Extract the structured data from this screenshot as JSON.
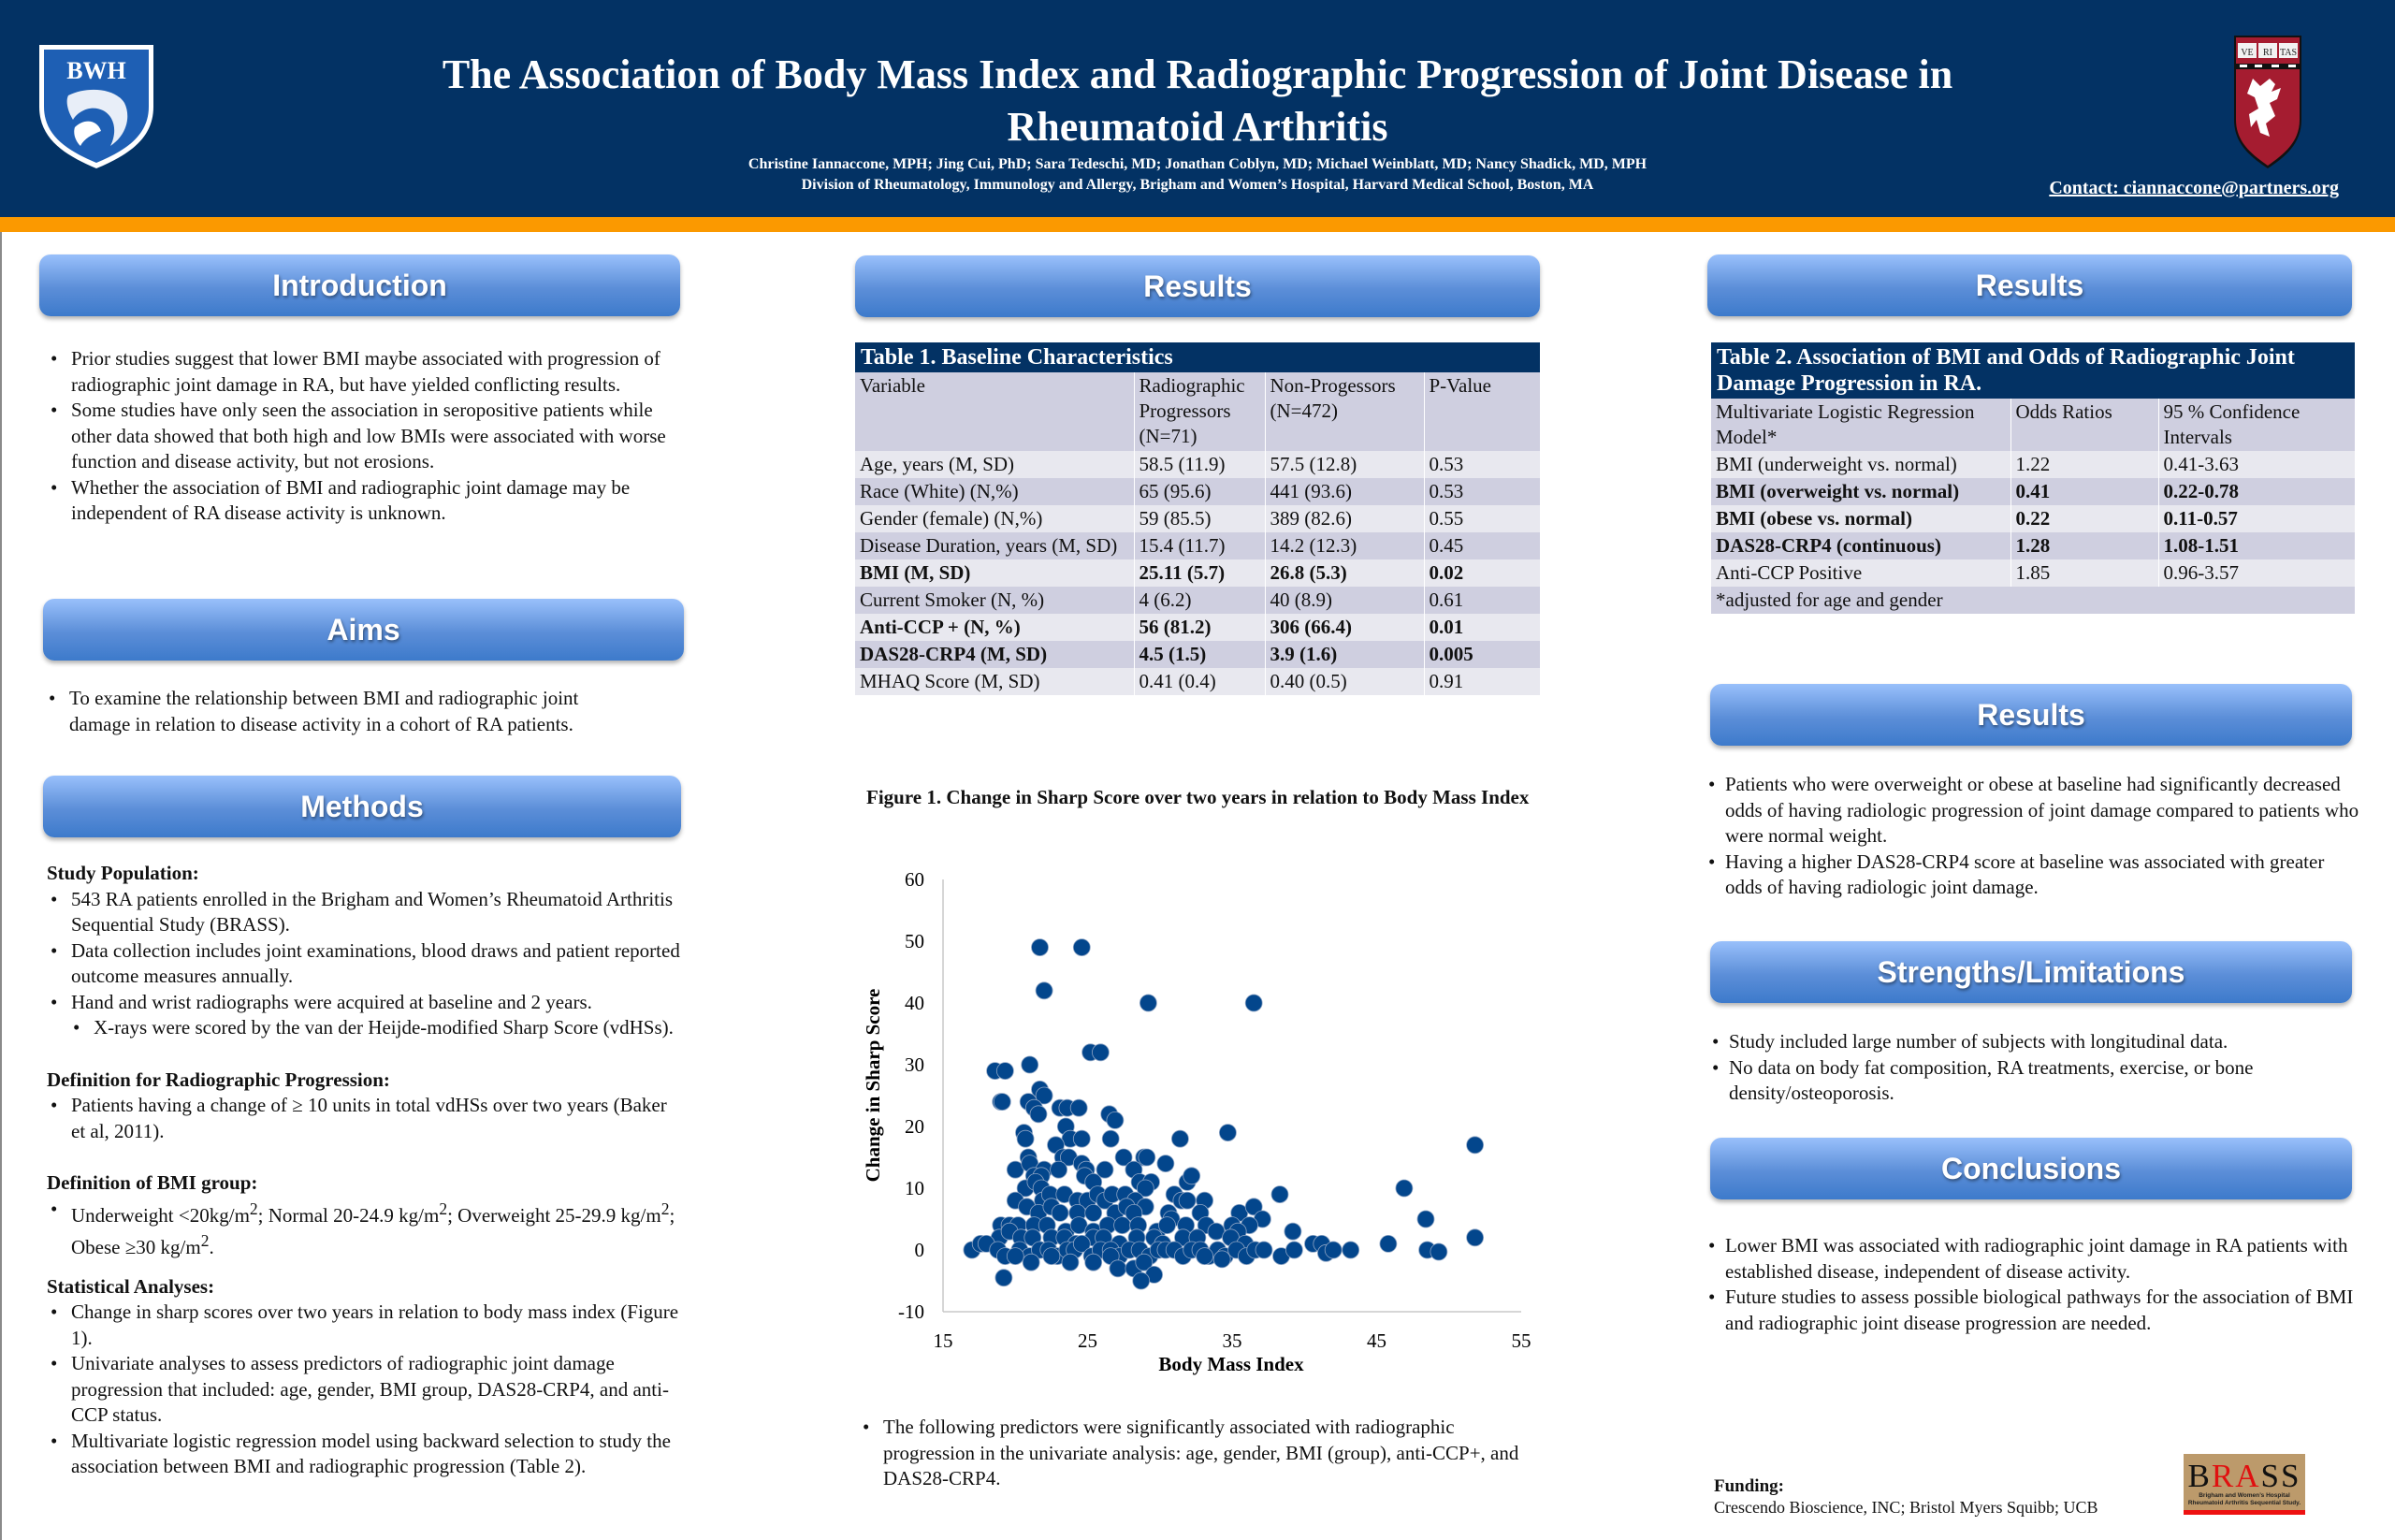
{
  "header": {
    "title": "The Association of Body Mass Index and Radiographic Progression of Joint Disease in Rheumatoid Arthritis",
    "authors": "Christine Iannaccone, MPH; Jing Cui, PhD;  Sara Tedeschi, MD; Jonathan Coblyn, MD; Michael Weinblatt, MD; Nancy Shadick, MD, MPH",
    "affiliation": "Division of Rheumatology, Immunology and Allergy, Brigham and Women’s Hospital, Harvard Medical School, Boston, MA",
    "contact": "Contact: ciannaccone@partners.org",
    "logo_left": "BWH",
    "logo_right": [
      "VE",
      "RI",
      "TAS"
    ],
    "colors": {
      "navy": "#033264",
      "orange": "#fb9900",
      "crimson": "#a51c30"
    }
  },
  "introduction": {
    "heading": "Introduction",
    "bullets": [
      "Prior studies suggest that lower BMI maybe associated with progression of radiographic joint damage in RA, but have yielded conflicting results.",
      "Some studies have only seen the association in seropositive patients while other data showed that both high and low BMIs were associated with worse function and disease activity, but not erosions.",
      "Whether the association of BMI and radiographic joint damage may be independent of RA disease activity is unknown."
    ]
  },
  "aims": {
    "heading": "Aims",
    "bullets": [
      "To examine the relationship between BMI and radiographic joint damage in relation to disease activity in a cohort of RA patients."
    ]
  },
  "methods": {
    "heading": "Methods",
    "study_population": {
      "title": "Study Population:",
      "bullets": [
        "543 RA patients enrolled in the Brigham and Women’s Rheumatoid Arthritis Sequential Study (BRASS).",
        "Data collection includes joint examinations, blood draws and patient reported outcome measures  annually.",
        "Hand and wrist radiographs were acquired at baseline and 2 years."
      ],
      "sub_bullet": "X-rays were scored by the van der Heijde-modified Sharp Score (vdHSs)."
    },
    "progression": {
      "title": "Definition for Radiographic Progression:",
      "bullet": "Patients having a change of ≥ 10 units in total vdHSs over two years (Baker et al, 2011)."
    },
    "bmi_group": {
      "title": "Definition of BMI group:",
      "underweight": "Underweight <20kg/m",
      "normal": "; Normal 20-24.9 kg/m",
      "overweight": "; Overweight 25-29.9 kg/m",
      "obese": "; Obese ≥30 kg/m",
      "sup": "2",
      "end": "."
    },
    "stats": {
      "title": "Statistical Analyses:",
      "bullets": [
        "Change in sharp scores over two years in relation to body mass index (Figure 1).",
        "Univariate analyses to assess predictors of radiographic joint damage progression that included: age, gender, BMI group, DAS28-CRP4, and anti-CCP status.",
        "Multivariate logistic regression model using backward selection to study the association between BMI and radiographic progression (Table 2)."
      ]
    }
  },
  "results_mid": {
    "heading": "Results",
    "table1": {
      "caption": "Table 1. Baseline Characteristics",
      "headers": [
        "Variable",
        "Radiographic Progressors (N=71)",
        "Non-Progessors (N=472)",
        "P-Value"
      ],
      "rows": [
        {
          "cells": [
            "Age, years (M, SD)",
            "58.5 (11.9)",
            "57.5 (12.8)",
            "0.53"
          ],
          "bold": false
        },
        {
          "cells": [
            "Race (White) (N,%)",
            "65 (95.6)",
            "441 (93.6)",
            "0.53"
          ],
          "bold": false
        },
        {
          "cells": [
            "Gender (female) (N,%)",
            "59 (85.5)",
            "389 (82.6)",
            "0.55"
          ],
          "bold": false
        },
        {
          "cells": [
            "Disease  Duration, years (M, SD)",
            "15.4 (11.7)",
            "14.2 (12.3)",
            "0.45"
          ],
          "bold": false
        },
        {
          "cells": [
            "BMI (M, SD)",
            "25.11 (5.7)",
            "26.8 (5.3)",
            "0.02"
          ],
          "bold": true
        },
        {
          "cells": [
            "Current Smoker (N, %)",
            "4 (6.2)",
            "40 (8.9)",
            "0.61"
          ],
          "bold": false
        },
        {
          "cells": [
            "Anti-CCP +  (N, %)",
            "56 (81.2)",
            "306 (66.4)",
            "0.01"
          ],
          "bold": true
        },
        {
          "cells": [
            "DAS28-CRP4 (M, SD)",
            "4.5 (1.5)",
            "3.9 (1.6)",
            "0.005"
          ],
          "bold": true
        },
        {
          "cells": [
            "MHAQ Score (M, SD)",
            "0.41 (0.4)",
            "0.40 (0.5)",
            "0.91"
          ],
          "bold": false
        }
      ]
    },
    "univariate_note": "The following predictors were significantly associated with radiographic progression in the univariate analysis: age, gender, BMI (group), anti-CCP+, and DAS28-CRP4."
  },
  "chart_data": {
    "type": "scatter",
    "title": "Figure 1. Change in Sharp Score over two years in relation to Body Mass Index",
    "xlabel": "Body Mass Index",
    "ylabel": "Change in Sharp Score",
    "xlim": [
      15,
      55
    ],
    "ylim": [
      -10,
      60
    ],
    "xticks": [
      "15",
      "25",
      "35",
      "45",
      "55"
    ],
    "yticks": [
      "60",
      "50",
      "40",
      "30",
      "20",
      "10",
      "0",
      "-10"
    ],
    "grid": false,
    "marker_color": "#03468c",
    "points": [
      [
        21.7,
        49
      ],
      [
        24.6,
        49
      ],
      [
        22,
        42
      ],
      [
        29.2,
        40
      ],
      [
        36.5,
        40
      ],
      [
        25.2,
        32
      ],
      [
        25.9,
        32
      ],
      [
        18.6,
        29
      ],
      [
        19.3,
        29
      ],
      [
        21,
        30
      ],
      [
        19,
        24
      ],
      [
        19.1,
        24
      ],
      [
        21.7,
        26
      ],
      [
        22,
        25
      ],
      [
        20.9,
        24
      ],
      [
        21.3,
        23
      ],
      [
        21.6,
        22
      ],
      [
        23.1,
        23
      ],
      [
        23.6,
        23
      ],
      [
        24.4,
        23
      ],
      [
        26.5,
        22
      ],
      [
        26.9,
        21
      ],
      [
        20.6,
        19
      ],
      [
        20.7,
        18
      ],
      [
        23.5,
        20
      ],
      [
        23.8,
        18
      ],
      [
        24.6,
        18
      ],
      [
        26.6,
        18
      ],
      [
        31.4,
        18
      ],
      [
        34.7,
        19
      ],
      [
        51.8,
        17
      ],
      [
        22.8,
        17
      ],
      [
        23.3,
        15
      ],
      [
        23.7,
        15
      ],
      [
        24.6,
        14
      ],
      [
        24.9,
        13
      ],
      [
        27.5,
        15
      ],
      [
        28.9,
        15
      ],
      [
        29.1,
        15
      ],
      [
        30.4,
        14
      ],
      [
        28.2,
        13
      ],
      [
        26.2,
        13
      ],
      [
        20,
        13
      ],
      [
        20.9,
        15
      ],
      [
        21,
        14
      ],
      [
        22,
        13
      ],
      [
        23,
        13
      ],
      [
        21.3,
        12
      ],
      [
        21.8,
        12
      ],
      [
        24.8,
        12
      ],
      [
        25.4,
        11
      ],
      [
        28.6,
        11
      ],
      [
        29.4,
        11
      ],
      [
        29,
        10
      ],
      [
        31.9,
        11
      ],
      [
        32.2,
        12
      ],
      [
        20.7,
        10
      ],
      [
        21.4,
        11
      ],
      [
        21.8,
        10
      ],
      [
        46.9,
        10
      ],
      [
        20,
        8
      ],
      [
        21.9,
        8
      ],
      [
        22.4,
        9
      ],
      [
        23.4,
        9
      ],
      [
        24.3,
        8
      ],
      [
        25,
        8
      ],
      [
        25.7,
        9
      ],
      [
        26.2,
        8
      ],
      [
        26.7,
        9
      ],
      [
        27.6,
        9
      ],
      [
        28.3,
        8
      ],
      [
        29,
        7
      ],
      [
        31,
        9
      ],
      [
        31.5,
        8
      ],
      [
        31.9,
        8
      ],
      [
        33.1,
        8
      ],
      [
        38.3,
        9
      ],
      [
        20.8,
        7
      ],
      [
        21.6,
        6
      ],
      [
        22.5,
        7
      ],
      [
        23.1,
        6
      ],
      [
        24.3,
        6
      ],
      [
        25.4,
        6
      ],
      [
        26.9,
        6
      ],
      [
        27.7,
        7
      ],
      [
        28.2,
        6
      ],
      [
        30.6,
        6
      ],
      [
        30.8,
        5
      ],
      [
        32.8,
        6
      ],
      [
        35.5,
        6
      ],
      [
        36.5,
        7
      ],
      [
        37.1,
        5
      ],
      [
        36.2,
        4
      ],
      [
        48.4,
        5
      ],
      [
        19,
        4
      ],
      [
        19.6,
        4
      ],
      [
        20.2,
        4
      ],
      [
        21.3,
        4
      ],
      [
        22.2,
        4
      ],
      [
        23.5,
        3
      ],
      [
        24.4,
        4
      ],
      [
        25.4,
        3
      ],
      [
        26.4,
        4
      ],
      [
        27.4,
        4
      ],
      [
        28.5,
        4
      ],
      [
        29.8,
        3
      ],
      [
        30.5,
        4
      ],
      [
        31.8,
        4
      ],
      [
        33.2,
        4
      ],
      [
        33.9,
        3
      ],
      [
        35,
        4
      ],
      [
        35.4,
        3
      ],
      [
        39.2,
        3
      ],
      [
        18.9,
        2
      ],
      [
        19.6,
        3
      ],
      [
        20.4,
        2
      ],
      [
        21.2,
        2
      ],
      [
        22.5,
        2
      ],
      [
        23.4,
        2
      ],
      [
        24.2,
        1
      ],
      [
        25.4,
        2
      ],
      [
        26.1,
        2
      ],
      [
        27.2,
        1
      ],
      [
        28.4,
        2
      ],
      [
        29.6,
        2
      ],
      [
        30.2,
        1
      ],
      [
        31.6,
        2
      ],
      [
        32.6,
        2
      ],
      [
        34.9,
        2
      ],
      [
        35.9,
        1
      ],
      [
        51.8,
        2
      ],
      [
        17,
        0
      ],
      [
        17.6,
        1
      ],
      [
        18,
        1
      ],
      [
        18.8,
        0
      ],
      [
        19.3,
        -1
      ],
      [
        20.3,
        0
      ],
      [
        21,
        -1
      ],
      [
        21.7,
        0
      ],
      [
        22.3,
        0
      ],
      [
        22.9,
        -1
      ],
      [
        23.6,
        0
      ],
      [
        24.1,
        0
      ],
      [
        24.6,
        1
      ],
      [
        25.3,
        -1
      ],
      [
        25.9,
        0
      ],
      [
        26.6,
        0
      ],
      [
        27.2,
        -1
      ],
      [
        27.9,
        0
      ],
      [
        28.6,
        0
      ],
      [
        29.3,
        -1
      ],
      [
        29.9,
        0
      ],
      [
        30.4,
        0
      ],
      [
        31,
        0
      ],
      [
        31.6,
        -1
      ],
      [
        32.2,
        0
      ],
      [
        32.8,
        0
      ],
      [
        33.4,
        -1
      ],
      [
        34,
        0
      ],
      [
        34.5,
        -1
      ],
      [
        35.3,
        0
      ],
      [
        36,
        -1
      ],
      [
        36.6,
        0
      ],
      [
        37.2,
        0
      ],
      [
        38.4,
        -1
      ],
      [
        39.3,
        0
      ],
      [
        40.6,
        1
      ],
      [
        41.2,
        1
      ],
      [
        41.5,
        -0.5
      ],
      [
        42,
        0
      ],
      [
        43.2,
        0
      ],
      [
        45.8,
        1
      ],
      [
        48.5,
        0
      ],
      [
        49.3,
        -0.3
      ],
      [
        20,
        -1
      ],
      [
        21.1,
        -2
      ],
      [
        22.5,
        -1
      ],
      [
        23.8,
        -2
      ],
      [
        25.4,
        -2
      ],
      [
        26.6,
        -1
      ],
      [
        27.1,
        -3
      ],
      [
        28.2,
        -3
      ],
      [
        28.9,
        -2
      ],
      [
        29.6,
        -4
      ],
      [
        28.7,
        -5
      ],
      [
        19.2,
        -4.5
      ],
      [
        33.1,
        -1
      ],
      [
        34.3,
        -1.5
      ]
    ]
  },
  "results_right": {
    "heading": "Results",
    "table2": {
      "caption": "Table 2. Association of BMI and Odds of Radiographic Joint Damage Progression in RA.",
      "headers": [
        "Multivariate Logistic Regression Model*",
        "Odds Ratios",
        "95 % Confidence Intervals"
      ],
      "rows": [
        {
          "cells": [
            "BMI (underweight vs. normal)",
            "1.22",
            "0.41-3.63"
          ],
          "bold": false
        },
        {
          "cells": [
            "BMI (overweight vs. normal)",
            "0.41",
            "0.22-0.78"
          ],
          "bold": true
        },
        {
          "cells": [
            "BMI (obese vs. normal)",
            "0.22",
            "0.11-0.57"
          ],
          "bold": true
        },
        {
          "cells": [
            "DAS28-CRP4 (continuous)",
            "1.28",
            "1.08-1.51"
          ],
          "bold": true
        },
        {
          "cells": [
            "Anti-CCP Positive",
            "1.85",
            "0.96-3.57"
          ],
          "bold": false
        }
      ],
      "footnote": "*adjusted for age and gender"
    }
  },
  "results_right2": {
    "heading": "Results",
    "bullets": [
      "Patients who were overweight or obese at baseline had significantly decreased odds of having radiologic progression of joint damage compared to patients who  were normal weight.",
      "Having a higher DAS28-CRP4 score  at baseline was associated with greater odds of having radiologic joint damage."
    ]
  },
  "strengths": {
    "heading": "Strengths/Limitations",
    "bullets": [
      "Study included large number of subjects with longitudinal data.",
      "No data on body fat composition, RA treatments, exercise, or bone density/osteoporosis."
    ]
  },
  "conclusions": {
    "heading": "Conclusions",
    "bullets": [
      "Lower BMI was associated with radiographic joint damage in RA patients with established disease, independent of disease activity.",
      "Future studies to assess possible biological pathways for the association of BMI and radiographic joint disease progression are needed."
    ]
  },
  "funding": {
    "title": "Funding:",
    "text": "Crescendo Bioscience, INC; Bristol Myers Squibb; UCB"
  },
  "brass_logo": {
    "b": "B",
    "ra": "RA",
    "ss": "SS",
    "line1": "Brigham and Women’s Hospital",
    "line2": "Rheumatoid Arthritis Sequential Study."
  }
}
